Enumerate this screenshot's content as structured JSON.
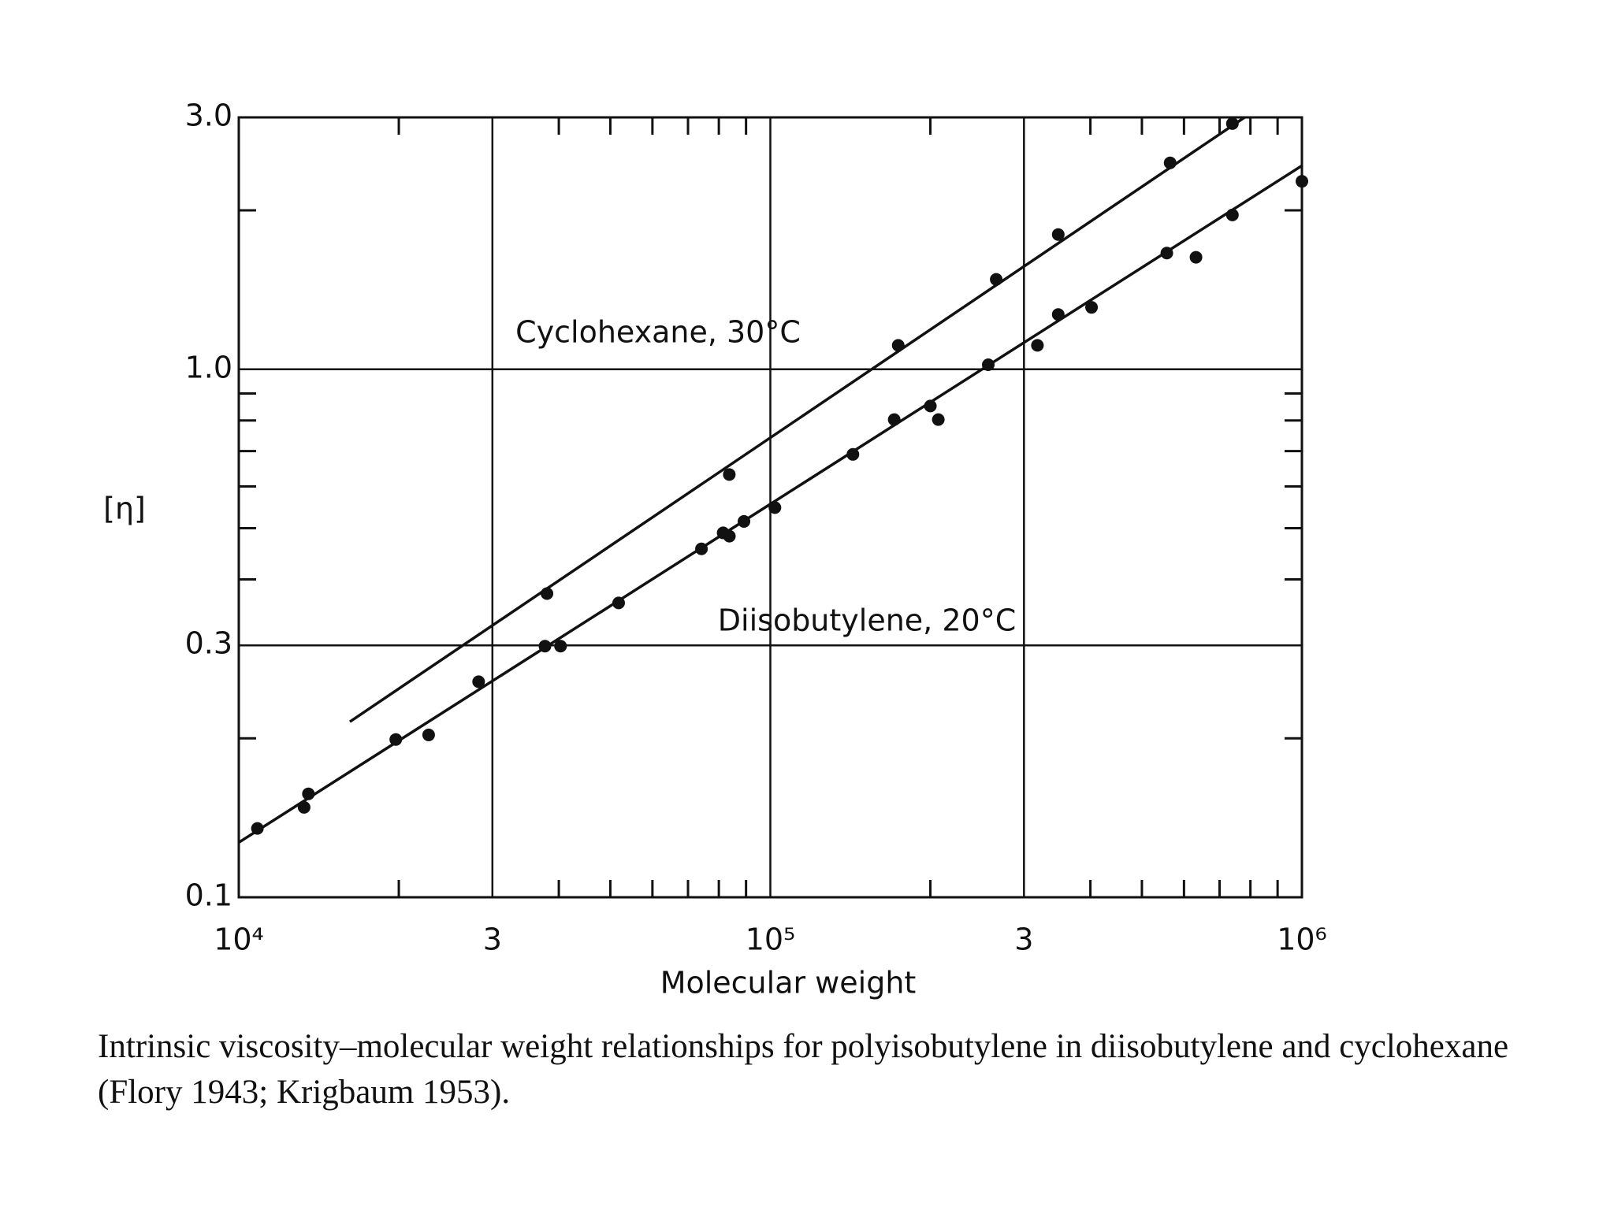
{
  "chart_data": {
    "type": "scatter",
    "xlabel": "Molecular weight",
    "ylabel": "[η]",
    "caption": "Intrinsic viscosity–molecular weight relationships for polyisobutylene in diisobutylene and cyclohexane (Flory 1943; Krigbaum 1953).",
    "xscale": "log",
    "yscale": "log",
    "grid": true,
    "xlim": [
      10000,
      1000000
    ],
    "ylim": [
      0.1,
      3
    ],
    "xticks": [
      {
        "value": 10000,
        "label": "10⁴"
      },
      {
        "value": 30000,
        "label": "3"
      },
      {
        "value": 100000,
        "label": "10⁵"
      },
      {
        "value": 300000,
        "label": "3"
      },
      {
        "value": 1000000,
        "label": "10⁶"
      }
    ],
    "yticks": [
      0.1,
      0.3,
      {
        "value": 1,
        "label": "1.0"
      },
      {
        "value": 3,
        "label": "3.0"
      }
    ],
    "x_minor_ticks": [
      20000,
      40000,
      50000,
      60000,
      70000,
      80000,
      90000,
      200000,
      400000,
      500000,
      600000,
      700000,
      800000,
      900000
    ],
    "y_minor_ticks": [
      0.2,
      0.4,
      0.5,
      0.6,
      0.7,
      0.8,
      0.9,
      2
    ],
    "series": [
      {
        "name": "Cyclohexane, 30°C",
        "color": "#111111",
        "x": [
          38000,
          83700,
          174000,
          266000,
          348000,
          565000,
          740000
        ],
        "values": [
          0.376,
          0.632,
          1.11,
          1.48,
          1.8,
          2.46,
          2.92
        ],
        "fit": {
          "x": [
            16180,
            780000
          ],
          "y": [
            0.215,
            3
          ]
        }
      },
      {
        "name": "Diisobutylene, 20°C",
        "color": "#111111",
        "x": [
          10840,
          13270,
          13520,
          19740,
          22760,
          28260,
          37670,
          40300,
          51830,
          74200,
          81510,
          83740,
          89200,
          102000,
          143000,
          171000,
          200000,
          207000,
          257000,
          318000,
          348000,
          402000,
          557000,
          632000,
          740000,
          1000000
        ],
        "values": [
          0.135,
          0.148,
          0.157,
          0.199,
          0.203,
          0.256,
          0.299,
          0.299,
          0.361,
          0.457,
          0.49,
          0.483,
          0.515,
          0.547,
          0.69,
          0.803,
          0.852,
          0.803,
          1.02,
          1.11,
          1.27,
          1.31,
          1.66,
          1.63,
          1.96,
          2.27
        ],
        "fit": {
          "x": [
            10000,
            1000000
          ],
          "y": [
            0.127,
            2.43
          ]
        }
      }
    ]
  }
}
